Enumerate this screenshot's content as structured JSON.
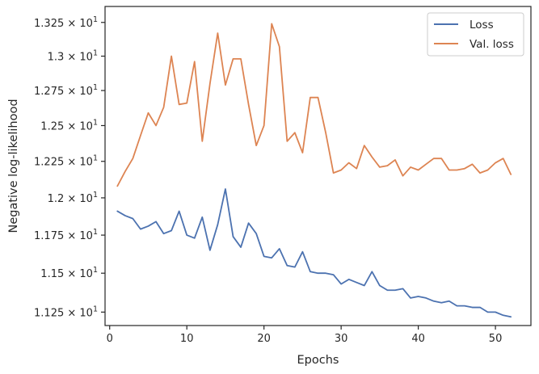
{
  "chart_data": {
    "type": "line",
    "title": "",
    "xlabel": "Epochs",
    "ylabel": "Negative log-likelihood",
    "xlim": [
      -0.6,
      54.6
    ],
    "ylim": [
      11.165,
      13.37
    ],
    "yscale": "log",
    "grid": false,
    "legend_position": "upper-right",
    "x_ticks": [
      0,
      10,
      20,
      30,
      40,
      50
    ],
    "y_ticks": [
      {
        "value": 11.25,
        "mantissa": "1.125",
        "times": "×",
        "base": "10",
        "exponent": "1"
      },
      {
        "value": 11.5,
        "mantissa": "1.15",
        "times": "×",
        "base": "10",
        "exponent": "1"
      },
      {
        "value": 11.75,
        "mantissa": "1.175",
        "times": "×",
        "base": "10",
        "exponent": "1"
      },
      {
        "value": 12.0,
        "mantissa": "1.2",
        "times": "×",
        "base": "10",
        "exponent": "1"
      },
      {
        "value": 12.25,
        "mantissa": "1.225",
        "times": "×",
        "base": "10",
        "exponent": "1"
      },
      {
        "value": 12.5,
        "mantissa": "1.25",
        "times": "×",
        "base": "10",
        "exponent": "1"
      },
      {
        "value": 12.75,
        "mantissa": "1.275",
        "times": "×",
        "base": "10",
        "exponent": "1"
      },
      {
        "value": 13.0,
        "mantissa": "1.3",
        "times": "×",
        "base": "10",
        "exponent": "1"
      },
      {
        "value": 13.25,
        "mantissa": "1.325",
        "times": "×",
        "base": "10",
        "exponent": "1"
      }
    ],
    "x": [
      1,
      2,
      3,
      4,
      5,
      6,
      7,
      8,
      9,
      10,
      11,
      12,
      13,
      14,
      15,
      16,
      17,
      18,
      19,
      20,
      21,
      22,
      23,
      24,
      25,
      26,
      27,
      28,
      29,
      30,
      31,
      32,
      33,
      34,
      35,
      36,
      37,
      38,
      39,
      40,
      41,
      42,
      43,
      44,
      45,
      46,
      47,
      48,
      49,
      50,
      51,
      52
    ],
    "series": [
      {
        "name": "Loss",
        "color": "#4c72b0",
        "values": [
          11.91,
          11.88,
          11.86,
          11.79,
          11.81,
          11.84,
          11.76,
          11.78,
          11.91,
          11.75,
          11.73,
          11.87,
          11.65,
          11.82,
          12.06,
          11.74,
          11.67,
          11.83,
          11.76,
          11.61,
          11.6,
          11.66,
          11.55,
          11.54,
          11.64,
          11.51,
          11.5,
          11.5,
          11.49,
          11.43,
          11.46,
          11.44,
          11.42,
          11.51,
          11.42,
          11.39,
          11.39,
          11.4,
          11.34,
          11.35,
          11.34,
          11.32,
          11.31,
          11.32,
          11.29,
          11.29,
          11.28,
          11.28,
          11.25,
          11.25,
          11.23,
          11.22
        ]
      },
      {
        "name": "Val. loss",
        "color": "#dd8452",
        "values": [
          12.08,
          12.18,
          12.27,
          12.43,
          12.59,
          12.5,
          12.63,
          13.0,
          12.65,
          12.66,
          12.96,
          12.39,
          12.8,
          13.17,
          12.79,
          12.98,
          12.98,
          12.65,
          12.36,
          12.5,
          13.24,
          13.07,
          12.39,
          12.45,
          12.31,
          12.7,
          12.7,
          12.45,
          12.17,
          12.19,
          12.24,
          12.2,
          12.36,
          12.28,
          12.21,
          12.22,
          12.26,
          12.15,
          12.21,
          12.19,
          12.23,
          12.27,
          12.27,
          12.19,
          12.19,
          12.2,
          12.23,
          12.17,
          12.19,
          12.24,
          12.27,
          12.16
        ]
      }
    ]
  }
}
